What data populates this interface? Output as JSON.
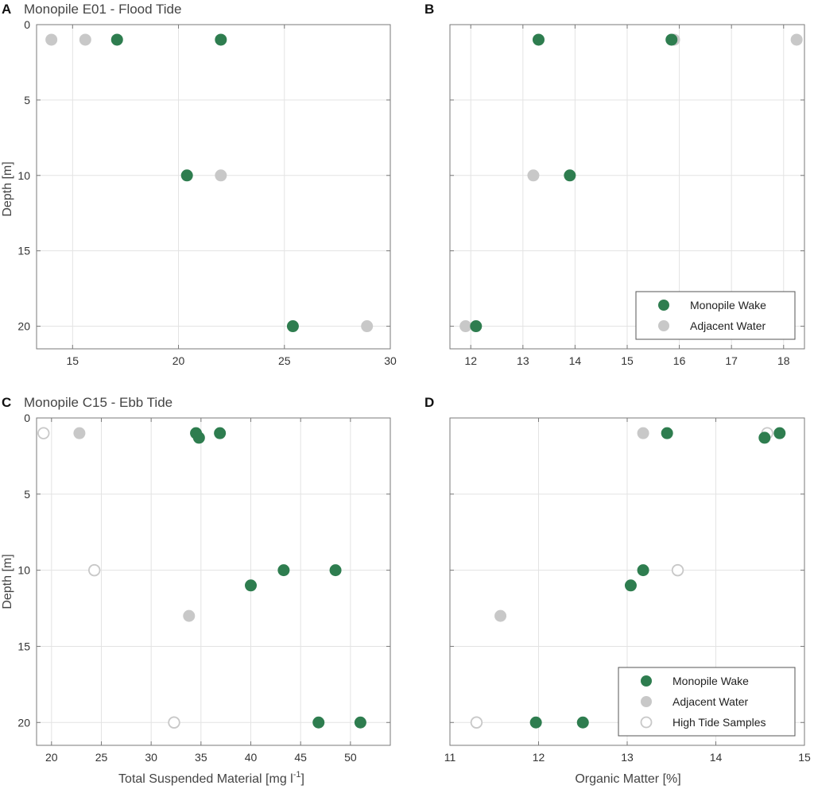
{
  "colors": {
    "wake": "#2e7d4f",
    "adjacent": "#c8c8c8",
    "high_tide": "#c8c8c8",
    "grid": "#e3e3e3",
    "frame": "#7a7a7a"
  },
  "chart_data": [
    {
      "panel": "A",
      "type": "scatter",
      "title": "Monopile E01 - Flood Tide",
      "xlabel": "",
      "ylabel": "Depth [m]",
      "xlim": [
        13.3,
        30
      ],
      "ylim": [
        0,
        21.5
      ],
      "xticks": [
        15,
        20,
        25,
        30
      ],
      "yticks": [
        0,
        5,
        10,
        15,
        20
      ],
      "grid": true,
      "series": [
        {
          "name": "Monopile Wake",
          "style": "wake",
          "points": [
            {
              "x": 17.1,
              "y": 1
            },
            {
              "x": 22.0,
              "y": 1
            },
            {
              "x": 20.4,
              "y": 10
            },
            {
              "x": 25.4,
              "y": 20
            }
          ]
        },
        {
          "name": "Adjacent Water",
          "style": "adjacent",
          "points": [
            {
              "x": 14.0,
              "y": 1
            },
            {
              "x": 15.6,
              "y": 1
            },
            {
              "x": 22.0,
              "y": 10
            },
            {
              "x": 28.9,
              "y": 20
            }
          ]
        }
      ]
    },
    {
      "panel": "B",
      "type": "scatter",
      "title": "",
      "xlabel": "",
      "ylabel": "",
      "xlim": [
        11.6,
        18.4
      ],
      "ylim": [
        0,
        21.5
      ],
      "xticks": [
        12,
        13,
        14,
        15,
        16,
        17,
        18
      ],
      "yticks": [
        0,
        5,
        10,
        15,
        20
      ],
      "grid": true,
      "legend": {
        "placement": "lower-right",
        "entries": [
          "Monopile Wake",
          "Adjacent Water"
        ]
      },
      "series": [
        {
          "name": "Monopile Wake",
          "style": "wake",
          "points": [
            {
              "x": 13.3,
              "y": 1
            },
            {
              "x": 15.85,
              "y": 1
            },
            {
              "x": 13.9,
              "y": 10
            },
            {
              "x": 12.1,
              "y": 20
            }
          ]
        },
        {
          "name": "Adjacent Water",
          "style": "adjacent",
          "points": [
            {
              "x": 15.9,
              "y": 1
            },
            {
              "x": 18.25,
              "y": 1
            },
            {
              "x": 13.2,
              "y": 10
            },
            {
              "x": 11.9,
              "y": 20
            }
          ]
        }
      ]
    },
    {
      "panel": "C",
      "type": "scatter",
      "title": "Monopile C15 - Ebb Tide",
      "xlabel": "Total Suspended Material [mg l",
      "xlabel_sup": "-1",
      "xlabel_end": "]",
      "ylabel": "Depth [m]",
      "xlim": [
        18.5,
        54
      ],
      "ylim": [
        0,
        21.5
      ],
      "xticks": [
        20,
        25,
        30,
        35,
        40,
        45,
        50
      ],
      "yticks": [
        0,
        5,
        10,
        15,
        20
      ],
      "grid": true,
      "series": [
        {
          "name": "Monopile Wake",
          "style": "wake",
          "points": [
            {
              "x": 34.5,
              "y": 1
            },
            {
              "x": 34.8,
              "y": 1.3
            },
            {
              "x": 36.9,
              "y": 1
            },
            {
              "x": 43.3,
              "y": 10
            },
            {
              "x": 48.5,
              "y": 10
            },
            {
              "x": 40.0,
              "y": 11
            },
            {
              "x": 46.8,
              "y": 20
            },
            {
              "x": 51.0,
              "y": 20
            }
          ]
        },
        {
          "name": "Adjacent Water",
          "style": "adjacent",
          "points": [
            {
              "x": 22.8,
              "y": 1
            },
            {
              "x": 33.8,
              "y": 13
            }
          ]
        },
        {
          "name": "High Tide Samples",
          "style": "high_tide",
          "points": [
            {
              "x": 19.2,
              "y": 1
            },
            {
              "x": 24.3,
              "y": 10
            },
            {
              "x": 32.3,
              "y": 20
            }
          ]
        }
      ]
    },
    {
      "panel": "D",
      "type": "scatter",
      "title": "",
      "xlabel": "Organic Matter [%]",
      "ylabel": "",
      "xlim": [
        11,
        15
      ],
      "ylim": [
        0,
        21.5
      ],
      "xticks": [
        11,
        12,
        13,
        14,
        15
      ],
      "yticks": [
        0,
        5,
        10,
        15,
        20
      ],
      "grid": true,
      "legend": {
        "placement": "lower-right",
        "entries": [
          "Monopile Wake",
          "Adjacent Water",
          "High Tide Samples"
        ]
      },
      "series": [
        {
          "name": "Monopile Wake",
          "style": "wake",
          "points": [
            {
              "x": 13.45,
              "y": 1
            },
            {
              "x": 14.72,
              "y": 1
            },
            {
              "x": 14.55,
              "y": 1.3
            },
            {
              "x": 13.18,
              "y": 10
            },
            {
              "x": 13.04,
              "y": 11
            },
            {
              "x": 11.97,
              "y": 20
            },
            {
              "x": 12.5,
              "y": 20
            }
          ]
        },
        {
          "name": "Adjacent Water",
          "style": "adjacent",
          "points": [
            {
              "x": 13.18,
              "y": 1
            },
            {
              "x": 11.57,
              "y": 13
            }
          ]
        },
        {
          "name": "High Tide Samples",
          "style": "high_tide",
          "points": [
            {
              "x": 14.58,
              "y": 1
            },
            {
              "x": 13.57,
              "y": 10
            },
            {
              "x": 11.3,
              "y": 20
            }
          ]
        }
      ]
    }
  ]
}
